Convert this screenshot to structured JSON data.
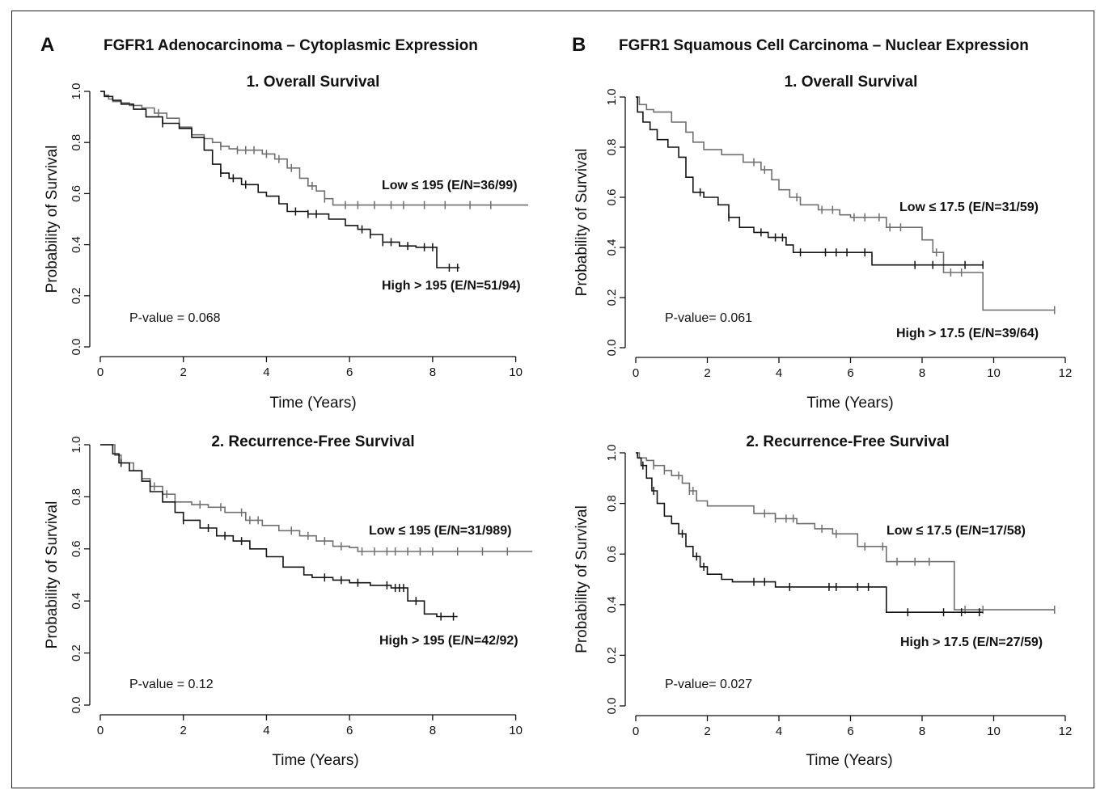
{
  "panels": [
    {
      "letter": "A",
      "title": "FGFR1 Adenocarcinoma – Cytoplasmic Expression"
    },
    {
      "letter": "B",
      "title": "FGFR1 Squamous Cell Carcinoma – Nuclear Expression"
    }
  ],
  "chart_data": [
    {
      "type": "line",
      "title": "1. Overall Survival",
      "xlabel": "Time (Years)",
      "ylabel": "Probability of Survival",
      "xlim": [
        0,
        10.3
      ],
      "ylim": [
        0,
        1
      ],
      "xticks": [
        "0",
        "2",
        "4",
        "6",
        "8",
        "10"
      ],
      "yticks": [
        "0.0",
        "0.2",
        "0.4",
        "0.6",
        "0.8",
        "1.0"
      ],
      "pvalue": "P-value = 0.068",
      "colors": {
        "low": "#6f6f6f",
        "high": "#141414"
      },
      "series": [
        {
          "name": "Low ≤ 195 (E/N=36/99)",
          "key": "low",
          "x": [
            0,
            0.1,
            0.2,
            0.3,
            0.5,
            0.7,
            1.0,
            1.3,
            1.6,
            1.9,
            2.2,
            2.5,
            2.7,
            2.9,
            3.1,
            3.3,
            3.7,
            3.9,
            4.2,
            4.5,
            4.8,
            5.0,
            5.2,
            5.4,
            5.6,
            6.0,
            7.0,
            8.0,
            9.0,
            10.3
          ],
          "y": [
            1,
            0.985,
            0.97,
            0.96,
            0.955,
            0.945,
            0.935,
            0.915,
            0.895,
            0.86,
            0.83,
            0.815,
            0.8,
            0.785,
            0.775,
            0.77,
            0.77,
            0.755,
            0.735,
            0.7,
            0.66,
            0.63,
            0.61,
            0.58,
            0.555,
            0.555,
            0.555,
            0.555,
            0.555,
            0.555
          ],
          "censor": [
            1.4,
            2.9,
            3.3,
            3.5,
            3.7,
            4.0,
            4.3,
            4.6,
            5.1,
            5.4,
            5.9,
            6.2,
            6.6,
            7.0,
            7.3,
            7.8,
            8.3,
            8.9,
            9.4
          ]
        },
        {
          "name": "High > 195 (E/N=51/94)",
          "key": "high",
          "x": [
            0,
            0.1,
            0.3,
            0.5,
            0.8,
            1.1,
            1.5,
            1.9,
            2.2,
            2.5,
            2.7,
            2.9,
            3.1,
            3.4,
            3.8,
            4.0,
            4.3,
            4.5,
            5.0,
            5.5,
            5.9,
            6.2,
            6.5,
            6.8,
            7.2,
            7.6,
            8.0,
            8.1,
            8.65
          ],
          "y": [
            1,
            0.98,
            0.965,
            0.95,
            0.93,
            0.9,
            0.875,
            0.855,
            0.82,
            0.77,
            0.715,
            0.68,
            0.66,
            0.635,
            0.605,
            0.59,
            0.56,
            0.53,
            0.52,
            0.5,
            0.475,
            0.46,
            0.44,
            0.41,
            0.395,
            0.39,
            0.39,
            0.31,
            0.31
          ],
          "censor": [
            1.5,
            2.9,
            3.2,
            3.5,
            4.7,
            5.0,
            5.2,
            6.3,
            6.5,
            6.8,
            7.0,
            7.4,
            7.8,
            8.0,
            8.4,
            8.6
          ]
        }
      ],
      "labels": [
        "Low ≤ 195 (E/N=36/99)",
        "High > 195 (E/N=51/94)"
      ]
    },
    {
      "type": "line",
      "title": "2. Recurrence-Free Survival",
      "xlabel": "Time (Years)",
      "ylabel": "Probability of Survival",
      "xlim": [
        0,
        10.3
      ],
      "ylim": [
        0,
        1
      ],
      "xticks": [
        "0",
        "2",
        "4",
        "6",
        "8",
        "10"
      ],
      "yticks": [
        "0.0",
        "0.2",
        "0.4",
        "0.6",
        "0.8",
        "1.0"
      ],
      "pvalue": "P-value = 0.12",
      "colors": {
        "low": "#6f6f6f",
        "high": "#141414"
      },
      "series": [
        {
          "name": "Low ≤ 195 (E/N=31/989)",
          "key": "low",
          "x": [
            0,
            0.35,
            0.5,
            0.8,
            1.0,
            1.2,
            1.5,
            1.8,
            2.2,
            2.6,
            3.0,
            3.5,
            3.9,
            4.3,
            4.8,
            5.2,
            5.6,
            6.0,
            6.2,
            7.0,
            8.0,
            9.0,
            10.4
          ],
          "y": [
            1,
            0.96,
            0.93,
            0.9,
            0.87,
            0.84,
            0.81,
            0.78,
            0.77,
            0.76,
            0.74,
            0.71,
            0.69,
            0.67,
            0.65,
            0.63,
            0.61,
            0.605,
            0.59,
            0.59,
            0.59,
            0.59,
            0.59
          ],
          "censor": [
            1.3,
            1.6,
            2.4,
            2.9,
            3.4,
            3.6,
            3.8,
            4.6,
            5.0,
            5.4,
            5.8,
            6.3,
            6.6,
            6.9,
            7.1,
            7.4,
            7.7,
            8.0,
            8.6,
            9.2,
            9.8
          ]
        },
        {
          "name": "High > 195 (E/N=42/92)",
          "key": "high",
          "x": [
            0,
            0.3,
            0.45,
            0.7,
            1.0,
            1.2,
            1.5,
            1.8,
            2.0,
            2.4,
            2.8,
            3.2,
            3.6,
            4.0,
            4.4,
            4.9,
            5.1,
            5.6,
            6.0,
            6.5,
            7.0,
            7.4,
            7.8,
            8.1,
            8.6
          ],
          "y": [
            1,
            0.965,
            0.93,
            0.9,
            0.86,
            0.82,
            0.78,
            0.74,
            0.71,
            0.68,
            0.65,
            0.63,
            0.6,
            0.57,
            0.53,
            0.5,
            0.49,
            0.48,
            0.47,
            0.46,
            0.45,
            0.4,
            0.35,
            0.34,
            0.34
          ],
          "censor": [
            0.5,
            2.0,
            2.6,
            3.0,
            3.4,
            5.4,
            5.8,
            6.2,
            6.9,
            7.1,
            7.2,
            7.3,
            7.6,
            8.2,
            8.5
          ]
        }
      ],
      "labels": [
        "Low ≤ 195 (E/N=31/989)",
        "High > 195 (E/N=42/92)"
      ]
    },
    {
      "type": "line",
      "title": "1. Overall Survival",
      "xlabel": "Time (Years)",
      "ylabel": "Probability of Survival",
      "xlim": [
        0,
        12
      ],
      "ylim": [
        0,
        1
      ],
      "xticks": [
        "0",
        "2",
        "4",
        "6",
        "8",
        "10",
        "12"
      ],
      "yticks": [
        "0.0",
        "0.2",
        "0.4",
        "0.6",
        "0.8",
        "1.0"
      ],
      "pvalue": "P-value= 0.061",
      "colors": {
        "low": "#6f6f6f",
        "high": "#141414"
      },
      "series": [
        {
          "name": "Low ≤ 17.5  (E/N=31/59)",
          "key": "low",
          "x": [
            0,
            0.1,
            0.3,
            0.5,
            1.0,
            1.4,
            1.6,
            1.9,
            2.4,
            3.0,
            3.5,
            3.8,
            4.0,
            4.3,
            4.6,
            5.1,
            5.7,
            6.0,
            6.7,
            7.0,
            7.5,
            8.0,
            8.3,
            8.6,
            9.6,
            9.7,
            11.7
          ],
          "y": [
            1,
            0.97,
            0.95,
            0.94,
            0.9,
            0.86,
            0.82,
            0.79,
            0.77,
            0.74,
            0.71,
            0.67,
            0.63,
            0.6,
            0.57,
            0.55,
            0.53,
            0.52,
            0.52,
            0.48,
            0.48,
            0.43,
            0.38,
            0.3,
            0.3,
            0.15,
            0.15
          ],
          "censor": [
            3.3,
            3.6,
            4.5,
            5.2,
            5.5,
            6.1,
            6.4,
            6.8,
            7.1,
            7.4,
            8.4,
            8.8,
            9.1,
            11.7
          ]
        },
        {
          "name": "High > 17.5  (E/N=39/64)",
          "key": "high",
          "x": [
            0,
            0.05,
            0.2,
            0.4,
            0.6,
            0.9,
            1.2,
            1.4,
            1.6,
            1.9,
            2.3,
            2.6,
            2.9,
            3.3,
            3.7,
            4.2,
            4.4,
            5.0,
            6.0,
            6.6,
            7.5,
            8.5,
            9.7
          ],
          "y": [
            1,
            0.94,
            0.9,
            0.87,
            0.83,
            0.8,
            0.76,
            0.68,
            0.62,
            0.6,
            0.57,
            0.52,
            0.48,
            0.46,
            0.44,
            0.41,
            0.38,
            0.38,
            0.38,
            0.33,
            0.33,
            0.33,
            0.33
          ],
          "censor": [
            1.8,
            2.6,
            3.5,
            3.9,
            4.1,
            4.6,
            5.3,
            5.6,
            5.9,
            6.4,
            7.8,
            8.3,
            9.2,
            9.7
          ]
        }
      ],
      "labels": [
        "Low ≤ 17.5  (E/N=31/59)",
        "High > 17.5  (E/N=39/64)"
      ]
    },
    {
      "type": "line",
      "title": "2. Recurrence-Free Survival",
      "xlabel": "Time (Years)",
      "ylabel": "Probability of Survival",
      "xlim": [
        0,
        12
      ],
      "ylim": [
        0,
        1
      ],
      "xticks": [
        "0",
        "2",
        "4",
        "6",
        "8",
        "10",
        "12"
      ],
      "yticks": [
        "0.0",
        "0.2",
        "0.4",
        "0.6",
        "0.8",
        "1.0"
      ],
      "pvalue": "P-value= 0.027",
      "colors": {
        "low": "#6f6f6f",
        "high": "#141414"
      },
      "series": [
        {
          "name": "Low ≤ 17.5 (E/N=17/58)",
          "key": "low",
          "x": [
            0,
            0.1,
            0.3,
            0.5,
            0.8,
            1.0,
            1.3,
            1.5,
            1.7,
            2.0,
            2.5,
            3.0,
            3.3,
            3.9,
            4.5,
            5.0,
            5.5,
            6.0,
            6.2,
            7.0,
            8.0,
            8.9,
            9.0,
            10.0,
            11.7
          ],
          "y": [
            1,
            0.98,
            0.97,
            0.95,
            0.93,
            0.91,
            0.88,
            0.85,
            0.81,
            0.79,
            0.79,
            0.79,
            0.76,
            0.74,
            0.72,
            0.7,
            0.68,
            0.68,
            0.63,
            0.57,
            0.57,
            0.38,
            0.38,
            0.38,
            0.38
          ],
          "censor": [
            0.5,
            0.8,
            1.2,
            1.5,
            1.6,
            3.6,
            3.9,
            4.2,
            4.4,
            5.2,
            5.6,
            6.4,
            6.9,
            7.3,
            7.8,
            8.2,
            9.2,
            9.7,
            11.7
          ]
        },
        {
          "name": "High > 17.5 (E/N=27/59)",
          "key": "high",
          "x": [
            0,
            0.05,
            0.15,
            0.3,
            0.45,
            0.6,
            0.8,
            1.0,
            1.2,
            1.4,
            1.6,
            1.8,
            2.0,
            2.4,
            2.7,
            3.0,
            3.5,
            3.9,
            5.0,
            6.0,
            6.9,
            7.0,
            8.0,
            9.7
          ],
          "y": [
            1,
            0.98,
            0.95,
            0.9,
            0.85,
            0.8,
            0.75,
            0.72,
            0.68,
            0.63,
            0.59,
            0.55,
            0.52,
            0.5,
            0.49,
            0.49,
            0.49,
            0.47,
            0.47,
            0.47,
            0.47,
            0.37,
            0.37,
            0.37
          ],
          "censor": [
            0.2,
            0.5,
            1.3,
            1.7,
            1.9,
            3.3,
            3.6,
            4.3,
            5.4,
            5.6,
            6.2,
            6.5,
            7.6,
            8.6,
            9.1,
            9.6
          ]
        }
      ],
      "labels": [
        "Low ≤ 17.5 (E/N=17/58)",
        "High > 17.5 (E/N=27/59)"
      ]
    }
  ]
}
